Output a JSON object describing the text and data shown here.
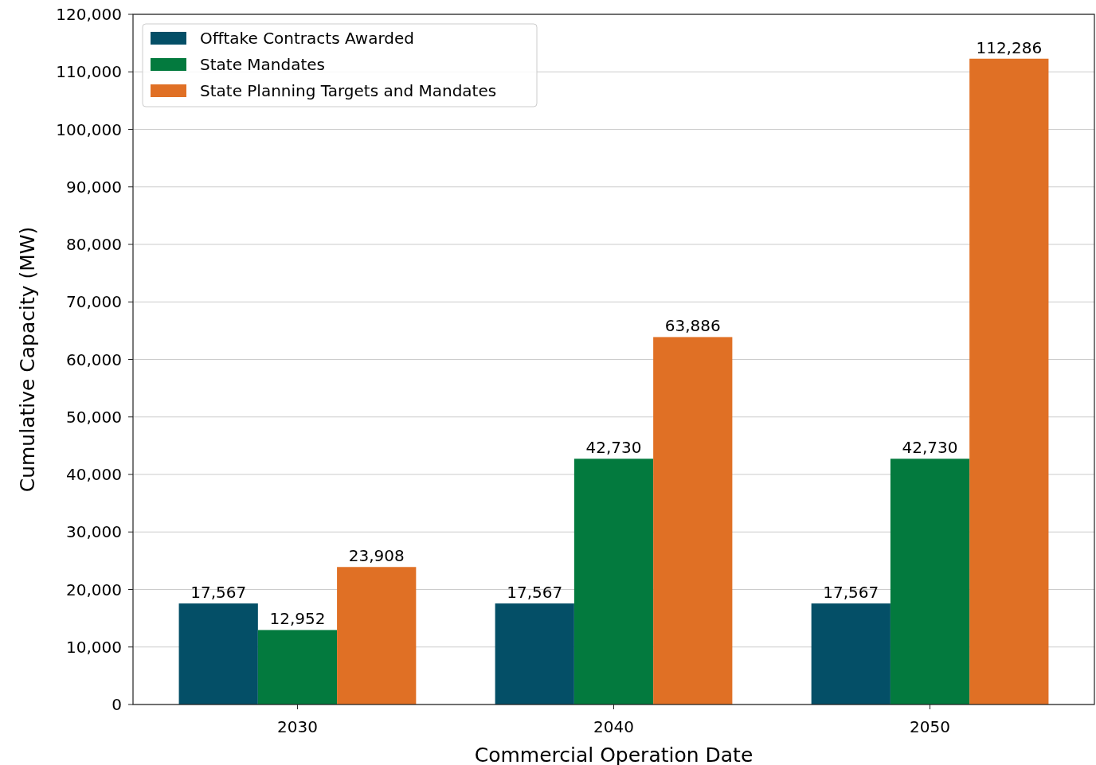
{
  "chart_data": {
    "type": "bar",
    "xlabel": "Commercial Operation Date",
    "ylabel": "Cumulative Capacity (MW)",
    "categories": [
      "2030",
      "2040",
      "2050"
    ],
    "series": [
      {
        "name": "Offtake Contracts Awarded",
        "color": "#044f67",
        "values": [
          17567,
          17567,
          17567
        ],
        "value_labels": [
          "17,567",
          "17,567",
          "17,567"
        ]
      },
      {
        "name": "State Mandates",
        "color": "#037a3e",
        "values": [
          12952,
          42730,
          42730
        ],
        "value_labels": [
          "12,952",
          "42,730",
          "42,730"
        ]
      },
      {
        "name": "State Planning Targets and Mandates",
        "color": "#e07025",
        "values": [
          23908,
          63886,
          112286
        ],
        "value_labels": [
          "23,908",
          "63,886",
          "112,286"
        ]
      }
    ],
    "ylim": [
      0,
      120000
    ],
    "yticks": [
      {
        "value": 0,
        "label": "0"
      },
      {
        "value": 10000,
        "label": "10,000"
      },
      {
        "value": 20000,
        "label": "20,000"
      },
      {
        "value": 30000,
        "label": "30,000"
      },
      {
        "value": 40000,
        "label": "40,000"
      },
      {
        "value": 50000,
        "label": "50,000"
      },
      {
        "value": 60000,
        "label": "60,000"
      },
      {
        "value": 70000,
        "label": "70,000"
      },
      {
        "value": 80000,
        "label": "80,000"
      },
      {
        "value": 90000,
        "label": "90,000"
      },
      {
        "value": 100000,
        "label": "100,000"
      },
      {
        "value": 110000,
        "label": "110,000"
      },
      {
        "value": 120000,
        "label": "120,000"
      }
    ],
    "grid": "y",
    "legend": "top left"
  }
}
